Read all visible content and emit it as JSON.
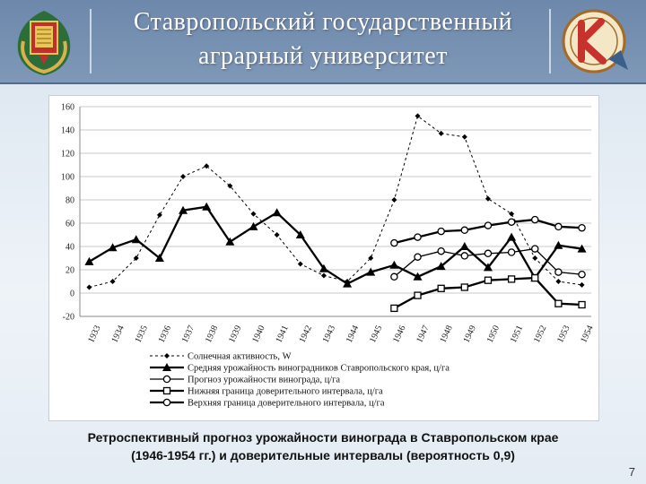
{
  "header": {
    "title_line1": "Ставропольский государственный",
    "title_line2": "аграрный университет"
  },
  "icons": {
    "left_emblem": "university-crest-icon",
    "right_emblem": "faculty-logo-icon"
  },
  "colors": {
    "header_bg": "#7690b2",
    "series": "#000000"
  },
  "chart_data": {
    "type": "line",
    "categories": [
      "1933",
      "1934",
      "1935",
      "1936",
      "1937",
      "1938",
      "1939",
      "1940",
      "1941",
      "1942",
      "1943",
      "1944",
      "1945",
      "1946",
      "1947",
      "1948",
      "1949",
      "1950",
      "1951",
      "1952",
      "1953",
      "1954"
    ],
    "ylim": [
      -20,
      160
    ],
    "yticks": [
      -20,
      0,
      20,
      40,
      60,
      80,
      100,
      120,
      140,
      160
    ],
    "grid": true,
    "legend_position": "bottom",
    "series": [
      {
        "name": "Солнечная активность, W",
        "marker": "diamond",
        "style": "dashed",
        "values": [
          5,
          10,
          30,
          67,
          100,
          109,
          92,
          68,
          50,
          25,
          15,
          10,
          30,
          80,
          152,
          137,
          134,
          81,
          68,
          30,
          10,
          7
        ]
      },
      {
        "name": "Средняя урожайность виноградников Ставропольского края, ц/га",
        "marker": "triangle",
        "style": "solid-bold",
        "values": [
          27,
          39,
          46,
          30,
          71,
          74,
          44,
          57,
          69,
          50,
          21,
          8,
          18,
          24,
          14,
          23,
          40,
          22,
          48,
          13,
          41,
          38
        ]
      },
      {
        "name": "Прогноз урожайности винограда, ц/га",
        "marker": "circle",
        "style": "solid",
        "values": [
          null,
          null,
          null,
          null,
          null,
          null,
          null,
          null,
          null,
          null,
          null,
          null,
          null,
          14,
          31,
          36,
          32,
          34,
          35,
          38,
          18,
          16
        ]
      },
      {
        "name": "Нижняя граница доверительного интервала, ц/га",
        "marker": "square",
        "style": "solid-bold",
        "values": [
          null,
          null,
          null,
          null,
          null,
          null,
          null,
          null,
          null,
          null,
          null,
          null,
          null,
          -13,
          -2,
          4,
          5,
          11,
          12,
          13,
          -9,
          -10
        ]
      },
      {
        "name": "Верхняя граница доверительного интервала, ц/га",
        "marker": "circle",
        "style": "solid-bold",
        "values": [
          null,
          null,
          null,
          null,
          null,
          null,
          null,
          null,
          null,
          null,
          null,
          null,
          null,
          43,
          48,
          53,
          54,
          58,
          61,
          63,
          57,
          56
        ]
      }
    ]
  },
  "caption": {
    "line1": "Ретроспективный прогноз урожайности винограда в Ставропольском крае",
    "line2": "(1946-1954 гг.) и доверительные интервалы (вероятность 0,9)"
  },
  "page_number": "7"
}
